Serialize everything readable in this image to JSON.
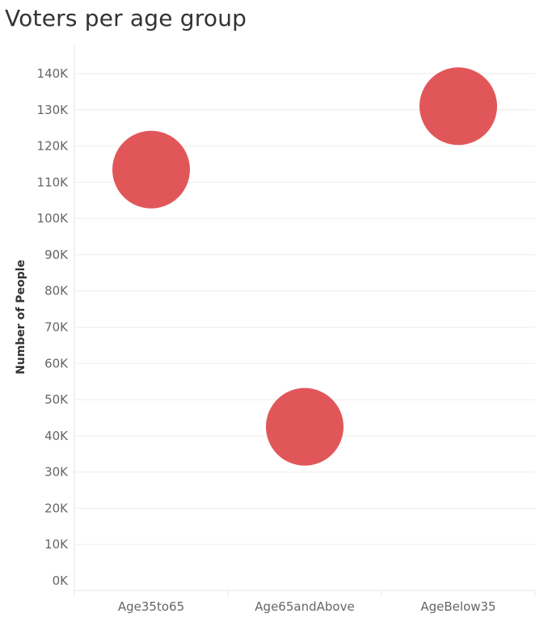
{
  "chart_data": {
    "type": "scatter",
    "title": "Voters per age group",
    "xlabel": "",
    "ylabel": "Number of People",
    "categories": [
      "Age35to65",
      "Age65andAbove",
      "AgeBelow35"
    ],
    "values": [
      113500,
      42500,
      131000
    ],
    "ylim": [
      0,
      145000
    ],
    "yticks": [
      0,
      10000,
      20000,
      30000,
      40000,
      50000,
      60000,
      70000,
      80000,
      90000,
      100000,
      110000,
      120000,
      130000,
      140000
    ],
    "ytick_labels": [
      "0K",
      "10K",
      "20K",
      "30K",
      "40K",
      "50K",
      "60K",
      "70K",
      "80K",
      "90K",
      "100K",
      "110K",
      "120K",
      "130K",
      "140K"
    ],
    "grid": true,
    "legend": "none",
    "color": "#e15759"
  }
}
